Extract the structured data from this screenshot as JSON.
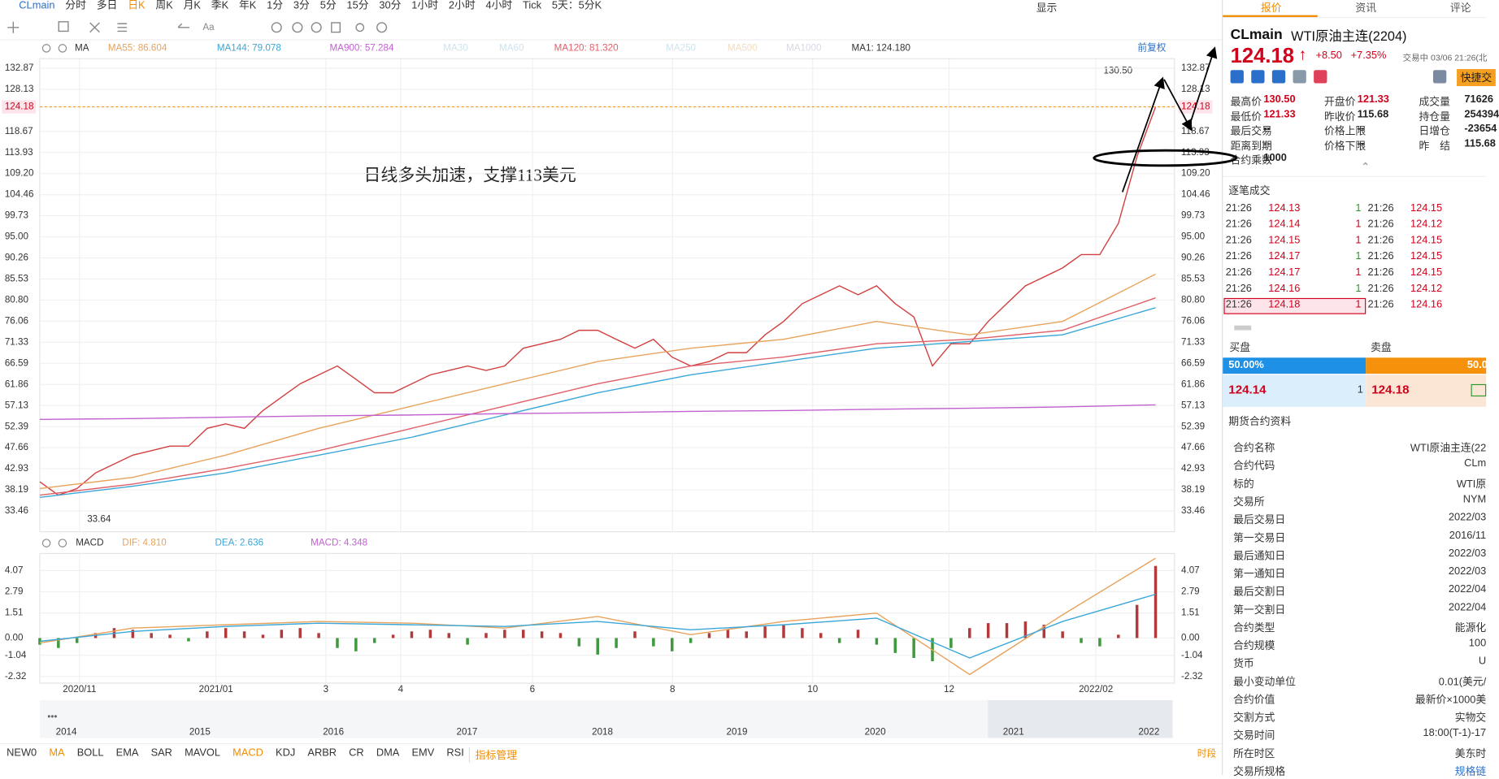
{
  "toolbar": {
    "symbol": "CLmain",
    "periods": [
      "分时",
      "多日",
      "日K",
      "周K",
      "月K",
      "季K",
      "年K",
      "1分",
      "3分",
      "5分",
      "15分",
      "30分",
      "1小时",
      "2小时",
      "4小时",
      "Tick",
      "5天：5分K"
    ],
    "active": "日K",
    "display": "显示",
    "font_button": "Aa"
  },
  "ma_legend": {
    "label": "MA",
    "items": [
      "MA55: 86.604",
      "MA144: 79.078",
      "MA900: 57.284",
      "MA30",
      "MA60",
      "MA120: 81.320",
      "MA250",
      "MA500",
      "MA1000",
      "MA1: 124.180"
    ],
    "colors": [
      "#e8a35c",
      "#3aa7d8",
      "#c162d0",
      "#cfe3ee",
      "#cfe3ee",
      "#e0606a",
      "#cfe3ee",
      "#f3dcc0",
      "#d8d8e8",
      "#333333"
    ],
    "adjust": "前复权"
  },
  "chart_data": [
    {
      "type": "line",
      "annotation": "日线多头加速，支撑113美元",
      "high_label": "130.50",
      "low_label": "33.64",
      "current_price": 124.18,
      "ylim": [
        33.46,
        132.87
      ],
      "yticks": [
        132.87,
        128.13,
        118.67,
        113.93,
        {
          "value": 109.2,
          "label": "109.20"
        },
        104.46,
        99.73,
        {
          "value": 95,
          "label": "95.00"
        },
        90.26,
        85.53,
        {
          "value": 80.8,
          "label": "80.80"
        },
        76.06,
        71.33,
        66.59,
        61.86,
        57.13,
        52.39,
        47.66,
        42.93,
        38.19,
        33.46
      ],
      "grid": true,
      "series": [
        {
          "color": "#d23f3f",
          "values": [
            40,
            37,
            38.5,
            42,
            44,
            46,
            47,
            48,
            48,
            52,
            53,
            52,
            56,
            59,
            62,
            64,
            66,
            63,
            60,
            60,
            62,
            64,
            65,
            66,
            65,
            66,
            70,
            71,
            72,
            74,
            74,
            72,
            70,
            72,
            68,
            66,
            67,
            69,
            69,
            73,
            76,
            80,
            82,
            84,
            82,
            84,
            80,
            77,
            66,
            71,
            71,
            76,
            80,
            84,
            86,
            88,
            91,
            91,
            98,
            113,
            124.18
          ]
        },
        {
          "color": "#e8a35c",
          "values": [
            38.5,
            41,
            46,
            52,
            57,
            62,
            67,
            70,
            72,
            76,
            73,
            76,
            86.6
          ]
        },
        {
          "color": "#e0606a",
          "values": [
            37,
            39.5,
            43,
            47,
            52,
            57,
            62,
            66,
            68,
            71,
            72,
            74,
            81.3
          ]
        },
        {
          "color": "#3aa7d8",
          "values": [
            36.5,
            39,
            42,
            46,
            50,
            55,
            60,
            64,
            67,
            70,
            71.5,
            73,
            79.08
          ]
        },
        {
          "color": "#c162d0",
          "values": [
            54,
            54.2,
            54.5,
            54.8,
            55,
            55.3,
            55.5,
            55.8,
            56,
            56.3,
            56.5,
            56.8,
            57.28
          ]
        }
      ]
    },
    {
      "type": "macd",
      "label": "MACD",
      "ylim": [
        -2.32,
        4.07
      ],
      "yticks": [
        4.07,
        2.79,
        1.51,
        {
          "value": 0,
          "label": "0.00"
        },
        -1.04,
        -2.32
      ],
      "histogram": {
        "name": "MACD: 4.348",
        "up_color": "#b23a3a",
        "down_color": "#3d9a3d",
        "values": [
          -0.4,
          -0.6,
          -0.3,
          0.3,
          0.6,
          0.5,
          0.3,
          0.2,
          -0.2,
          0.4,
          0.6,
          0.4,
          0.2,
          0.5,
          0.6,
          0.3,
          -0.6,
          -0.8,
          -0.3,
          0.2,
          0.4,
          0.5,
          0.3,
          -0.4,
          0.3,
          0.5,
          0.5,
          0.4,
          0.3,
          -0.5,
          -1.0,
          -0.6,
          0.4,
          -0.5,
          -0.8,
          -0.3,
          0.3,
          0.5,
          0.4,
          0.7,
          0.8,
          0.6,
          0.3,
          -0.3,
          0.5,
          -0.4,
          -0.9,
          -1.2,
          -1.4,
          -0.6,
          0.6,
          0.9,
          0.9,
          1.0,
          0.8,
          0.4,
          -0.3,
          -0.5,
          0.2,
          2.0,
          4.348
        ]
      },
      "series": [
        {
          "name": "DIF: 4.810",
          "color": "#e8a35c",
          "values": [
            -0.3,
            0.6,
            0.8,
            1.0,
            0.9,
            0.6,
            1.3,
            0.2,
            1.0,
            1.5,
            -2.2,
            1.4,
            4.81
          ]
        },
        {
          "name": "DEA: 2.636",
          "color": "#3aa7d8",
          "values": [
            -0.2,
            0.4,
            0.7,
            0.9,
            0.8,
            0.7,
            1.0,
            0.5,
            0.8,
            1.2,
            -1.2,
            1.0,
            2.636
          ]
        }
      ],
      "legend_colors": [
        "#e8a35c",
        "#3aa7d8",
        "#c162d0"
      ]
    }
  ],
  "x_axis": {
    "labels": [
      "2020/11",
      "2021/01",
      "3",
      "4",
      "6",
      "8",
      "10",
      "12",
      "2022/02"
    ]
  },
  "navigator": {
    "years": [
      "2014",
      "2015",
      "2016",
      "2017",
      "2018",
      "2019",
      "2020",
      "2021",
      "2022"
    ]
  },
  "indicators": {
    "items": [
      "NEW0",
      "MA",
      "BOLL",
      "EMA",
      "SAR",
      "MAVOL",
      "MACD",
      "KDJ",
      "ARBR",
      "CR",
      "DMA",
      "EMV",
      "RSI"
    ],
    "active": [
      "MA",
      "MACD"
    ],
    "manage": "指标管理",
    "period": "时段"
  },
  "panel": {
    "tabs": [
      "报价",
      "资讯",
      "评论"
    ],
    "symbol": "CLmain",
    "name": "WTI原油主连(2204)",
    "price": "124.18",
    "change": "+8.50",
    "change_pct": "+7.35%",
    "status": "交易中 03/06 21:26(北",
    "quick_trade": "快捷交",
    "stats": [
      [
        "最高价",
        "130.50"
      ],
      [
        "开盘价",
        "121.33"
      ],
      [
        "成交量",
        "71626"
      ],
      [
        "最低价",
        "121.33"
      ],
      [
        "昨收价",
        "115.68"
      ],
      [
        "持仓量",
        "254394"
      ],
      [
        "最后交易",
        "--"
      ],
      [
        "价格上限",
        "--"
      ],
      [
        "日增仓",
        "-23654"
      ],
      [
        "距离到期",
        "--"
      ],
      [
        "价格下限",
        "--"
      ],
      [
        "昨　结",
        "115.68"
      ],
      [
        "合约乘数",
        "1000"
      ]
    ],
    "trades_title": "逐笔成交",
    "trades": [
      [
        "21:26",
        "124.13",
        "1",
        "21:26",
        "124.15"
      ],
      [
        "21:26",
        "124.14",
        "1",
        "21:26",
        "124.12"
      ],
      [
        "21:26",
        "124.15",
        "1",
        "21:26",
        "124.15"
      ],
      [
        "21:26",
        "124.17",
        "1",
        "21:26",
        "124.15"
      ],
      [
        "21:26",
        "124.17",
        "1",
        "21:26",
        "124.15"
      ],
      [
        "21:26",
        "124.16",
        "1",
        "21:26",
        "124.12"
      ],
      [
        "21:26",
        "124.18",
        "1",
        "21:26",
        "124.16"
      ]
    ],
    "bid_title": "买盘",
    "ask_title": "卖盘",
    "bid_pct": "50.00%",
    "ask_pct": "50.0",
    "bid_price": "124.14",
    "bid_vol": "1",
    "ask_price": "124.18",
    "info_title": "期货合约资料",
    "info": [
      [
        "合约名称",
        "WTI原油主连(22"
      ],
      [
        "合约代码",
        "CLm"
      ],
      [
        "标的",
        "WTI原"
      ],
      [
        "交易所",
        "NYM"
      ],
      [
        "最后交易日",
        "2022/03"
      ],
      [
        "第一交易日",
        "2016/11"
      ],
      [
        "最后通知日",
        "2022/03"
      ],
      [
        "第一通知日",
        "2022/03"
      ],
      [
        "最后交割日",
        "2022/04"
      ],
      [
        "第一交割日",
        "2022/04"
      ],
      [
        "合约类型",
        "能源化"
      ],
      [
        "合约规模",
        "100"
      ],
      [
        "货币",
        "U"
      ],
      [
        "最小变动单位",
        "0.01(美元/"
      ],
      [
        "合约价值",
        "最新价×1000美"
      ],
      [
        "交割方式",
        "实物交"
      ],
      [
        "交易时间",
        "18:00(T-1)-17"
      ],
      [
        "所在时区",
        "美东时"
      ],
      [
        "交易所规格",
        "规格链"
      ]
    ]
  }
}
